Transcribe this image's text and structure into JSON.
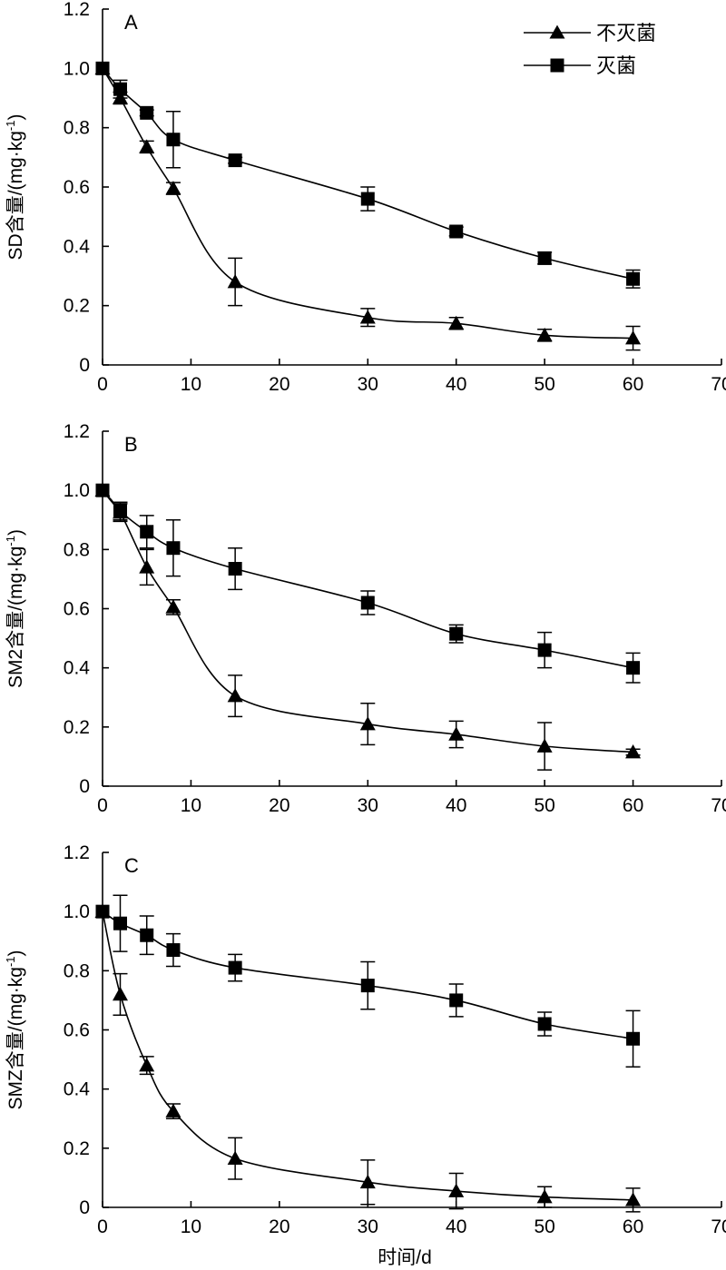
{
  "legend": {
    "placement": "top-right",
    "entries": [
      {
        "label": "不灭菌",
        "marker": "triangle"
      },
      {
        "label": "灭菌",
        "marker": "square"
      }
    ]
  },
  "xlabel": "时间/d",
  "chart_data": [
    {
      "type": "line",
      "panel_label": "A",
      "ylabel_prefix": "SD含量/(mg·kg",
      "ylabel_sup": "-1",
      "ylabel_suffix": ")",
      "xlim": [
        0,
        70
      ],
      "ylim": [
        0,
        1.2
      ],
      "x_ticks": [
        "0",
        "10",
        "20",
        "30",
        "40",
        "50",
        "60",
        "70"
      ],
      "y_ticks": [
        "0",
        "0.2",
        "0.4",
        "0.6",
        "0.8",
        "1.0",
        "1.2"
      ],
      "grid": false,
      "x": [
        0,
        2,
        5,
        8,
        15,
        30,
        40,
        50,
        60
      ],
      "series": [
        {
          "name": "不灭菌",
          "marker": "triangle",
          "values": [
            1.0,
            0.9,
            0.735,
            0.595,
            0.28,
            0.16,
            0.14,
            0.1,
            0.09
          ],
          "errors": [
            0,
            0.02,
            0.02,
            0.02,
            0.08,
            0.03,
            0.02,
            0.02,
            0.04
          ]
        },
        {
          "name": "灭菌",
          "marker": "square",
          "values": [
            1.0,
            0.93,
            0.85,
            0.76,
            0.69,
            0.56,
            0.45,
            0.36,
            0.29
          ],
          "errors": [
            0,
            0.03,
            0.01,
            0.095,
            0.01,
            0.04,
            0.015,
            0.02,
            0.03
          ]
        }
      ]
    },
    {
      "type": "line",
      "panel_label": "B",
      "ylabel_prefix": "SM2含量/(mg·kg",
      "ylabel_sup": "-1",
      "ylabel_suffix": ")",
      "xlim": [
        0,
        70
      ],
      "ylim": [
        0,
        1.2
      ],
      "x_ticks": [
        "0",
        "10",
        "20",
        "30",
        "40",
        "50",
        "60",
        "70"
      ],
      "y_ticks": [
        "0",
        "0.2",
        "0.4",
        "0.6",
        "0.8",
        "1.0",
        "1.2"
      ],
      "grid": false,
      "x": [
        0,
        2,
        5,
        8,
        15,
        30,
        40,
        50,
        60
      ],
      "series": [
        {
          "name": "不灭菌",
          "marker": "triangle",
          "values": [
            1.0,
            0.925,
            0.74,
            0.605,
            0.305,
            0.21,
            0.175,
            0.135,
            0.115
          ],
          "errors": [
            0,
            0.03,
            0.06,
            0.025,
            0.07,
            0.07,
            0.045,
            0.08,
            0.01
          ]
        },
        {
          "name": "灭菌",
          "marker": "square",
          "values": [
            1.0,
            0.93,
            0.86,
            0.805,
            0.735,
            0.62,
            0.515,
            0.46,
            0.4
          ],
          "errors": [
            0,
            0.03,
            0.055,
            0.095,
            0.07,
            0.04,
            0.03,
            0.06,
            0.05
          ]
        }
      ]
    },
    {
      "type": "line",
      "panel_label": "C",
      "ylabel_prefix": "SMZ含量/(mg·kg",
      "ylabel_sup": "-1",
      "ylabel_suffix": ")",
      "xlim": [
        0,
        70
      ],
      "ylim": [
        0,
        1.2
      ],
      "x_ticks": [
        "0",
        "10",
        "20",
        "30",
        "40",
        "50",
        "60",
        "70"
      ],
      "y_ticks": [
        "0",
        "0.2",
        "0.4",
        "0.6",
        "0.8",
        "1.0",
        "1.2"
      ],
      "grid": false,
      "x": [
        0,
        2,
        5,
        8,
        15,
        30,
        40,
        50,
        60
      ],
      "series": [
        {
          "name": "不灭菌",
          "marker": "triangle",
          "values": [
            1.0,
            0.72,
            0.48,
            0.325,
            0.165,
            0.085,
            0.055,
            0.035,
            0.025
          ],
          "errors": [
            0,
            0.07,
            0.03,
            0.025,
            0.07,
            0.075,
            0.06,
            0.035,
            0.04
          ]
        },
        {
          "name": "灭菌",
          "marker": "square",
          "values": [
            1.0,
            0.96,
            0.92,
            0.87,
            0.81,
            0.75,
            0.7,
            0.62,
            0.57
          ],
          "errors": [
            0,
            0.095,
            0.065,
            0.055,
            0.045,
            0.08,
            0.055,
            0.04,
            0.095
          ]
        }
      ]
    }
  ]
}
